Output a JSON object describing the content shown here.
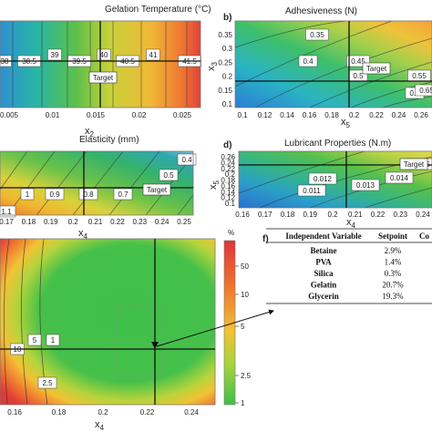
{
  "chart_data": [
    {
      "panel": "",
      "type": "heatmap",
      "title": "Gelation Temperature (°C)",
      "xlabel": "x2",
      "ylabel": "",
      "xticks": [
        "0.005",
        "0.01",
        "0.015",
        "0.02",
        "0.025"
      ],
      "yticks": [],
      "contour_labels": [
        "38",
        "38.5",
        "39",
        "39.5",
        "40",
        "40.5",
        "41",
        "41.5"
      ],
      "target_label": "Target"
    },
    {
      "panel": "b)",
      "type": "heatmap",
      "title": "Adhesiveness (N)",
      "xlabel": "x5",
      "ylabel": "x3",
      "xticks": [
        "0.1",
        "0.12",
        "0.14",
        "0.16",
        "0.18",
        "0.2",
        "0.22",
        "0.24",
        "0.26"
      ],
      "yticks": [
        "0.35",
        "0.3",
        "0.25",
        "0.2",
        "0.15",
        "0.1"
      ],
      "contour_labels": [
        "0.35",
        "0.4",
        "0.45",
        "0.5",
        "0.55",
        "0.6",
        "0.65"
      ],
      "target_label": "Target"
    },
    {
      "panel": "",
      "type": "heatmap",
      "title": "Elasticity (mm)",
      "xlabel": "x4",
      "ylabel": "",
      "xticks": [
        "0.17",
        "0.18",
        "0.19",
        "0.2",
        "0.21",
        "0.22",
        "0.23",
        "0.24",
        "0.25"
      ],
      "yticks": [],
      "contour_labels": [
        "1.1",
        "1",
        "0.9",
        "0.8",
        "0.7",
        "0.5",
        "0.4"
      ],
      "target_label": "Target"
    },
    {
      "panel": "d)",
      "type": "heatmap",
      "title": "Lubricant Properties (N.m)",
      "xlabel": "x4",
      "ylabel": "x5",
      "xticks": [
        "0.16",
        "0.17",
        "0.18",
        "0.19",
        "0.2",
        "0.21",
        "0.22",
        "0.23",
        "0.24"
      ],
      "yticks": [
        "0.26",
        "0.24",
        "0.22",
        "0.2",
        "0.18",
        "0.16",
        "0.14",
        "0.12",
        "0.1"
      ],
      "contour_labels": [
        "0.011",
        "0.012",
        "0.013",
        "0.014",
        "0.015"
      ],
      "target_label": "Target"
    },
    {
      "panel": "",
      "type": "heatmap",
      "title": "",
      "xlabel": "x4",
      "ylabel": "",
      "xticks": [
        "0.16",
        "0.18",
        "0.2",
        "0.22",
        "0.24"
      ],
      "yticks": [],
      "colorbar_unit": "%",
      "colorbar_ticks": [
        "50",
        "10",
        "5",
        "2.5",
        "1"
      ],
      "contour_labels": [
        "10",
        "5",
        "1",
        "2.5"
      ]
    },
    {
      "panel": "f)",
      "type": "table",
      "columns": [
        "Independent Variable",
        "Setpoint",
        "Co"
      ],
      "rows": [
        [
          "Betaine",
          "2.9%"
        ],
        [
          "PVA",
          "1.4%"
        ],
        [
          "Silica",
          "0.3%"
        ],
        [
          "Gelatin",
          "20.7%"
        ],
        [
          "Glycerin",
          "19.3%"
        ]
      ]
    }
  ]
}
